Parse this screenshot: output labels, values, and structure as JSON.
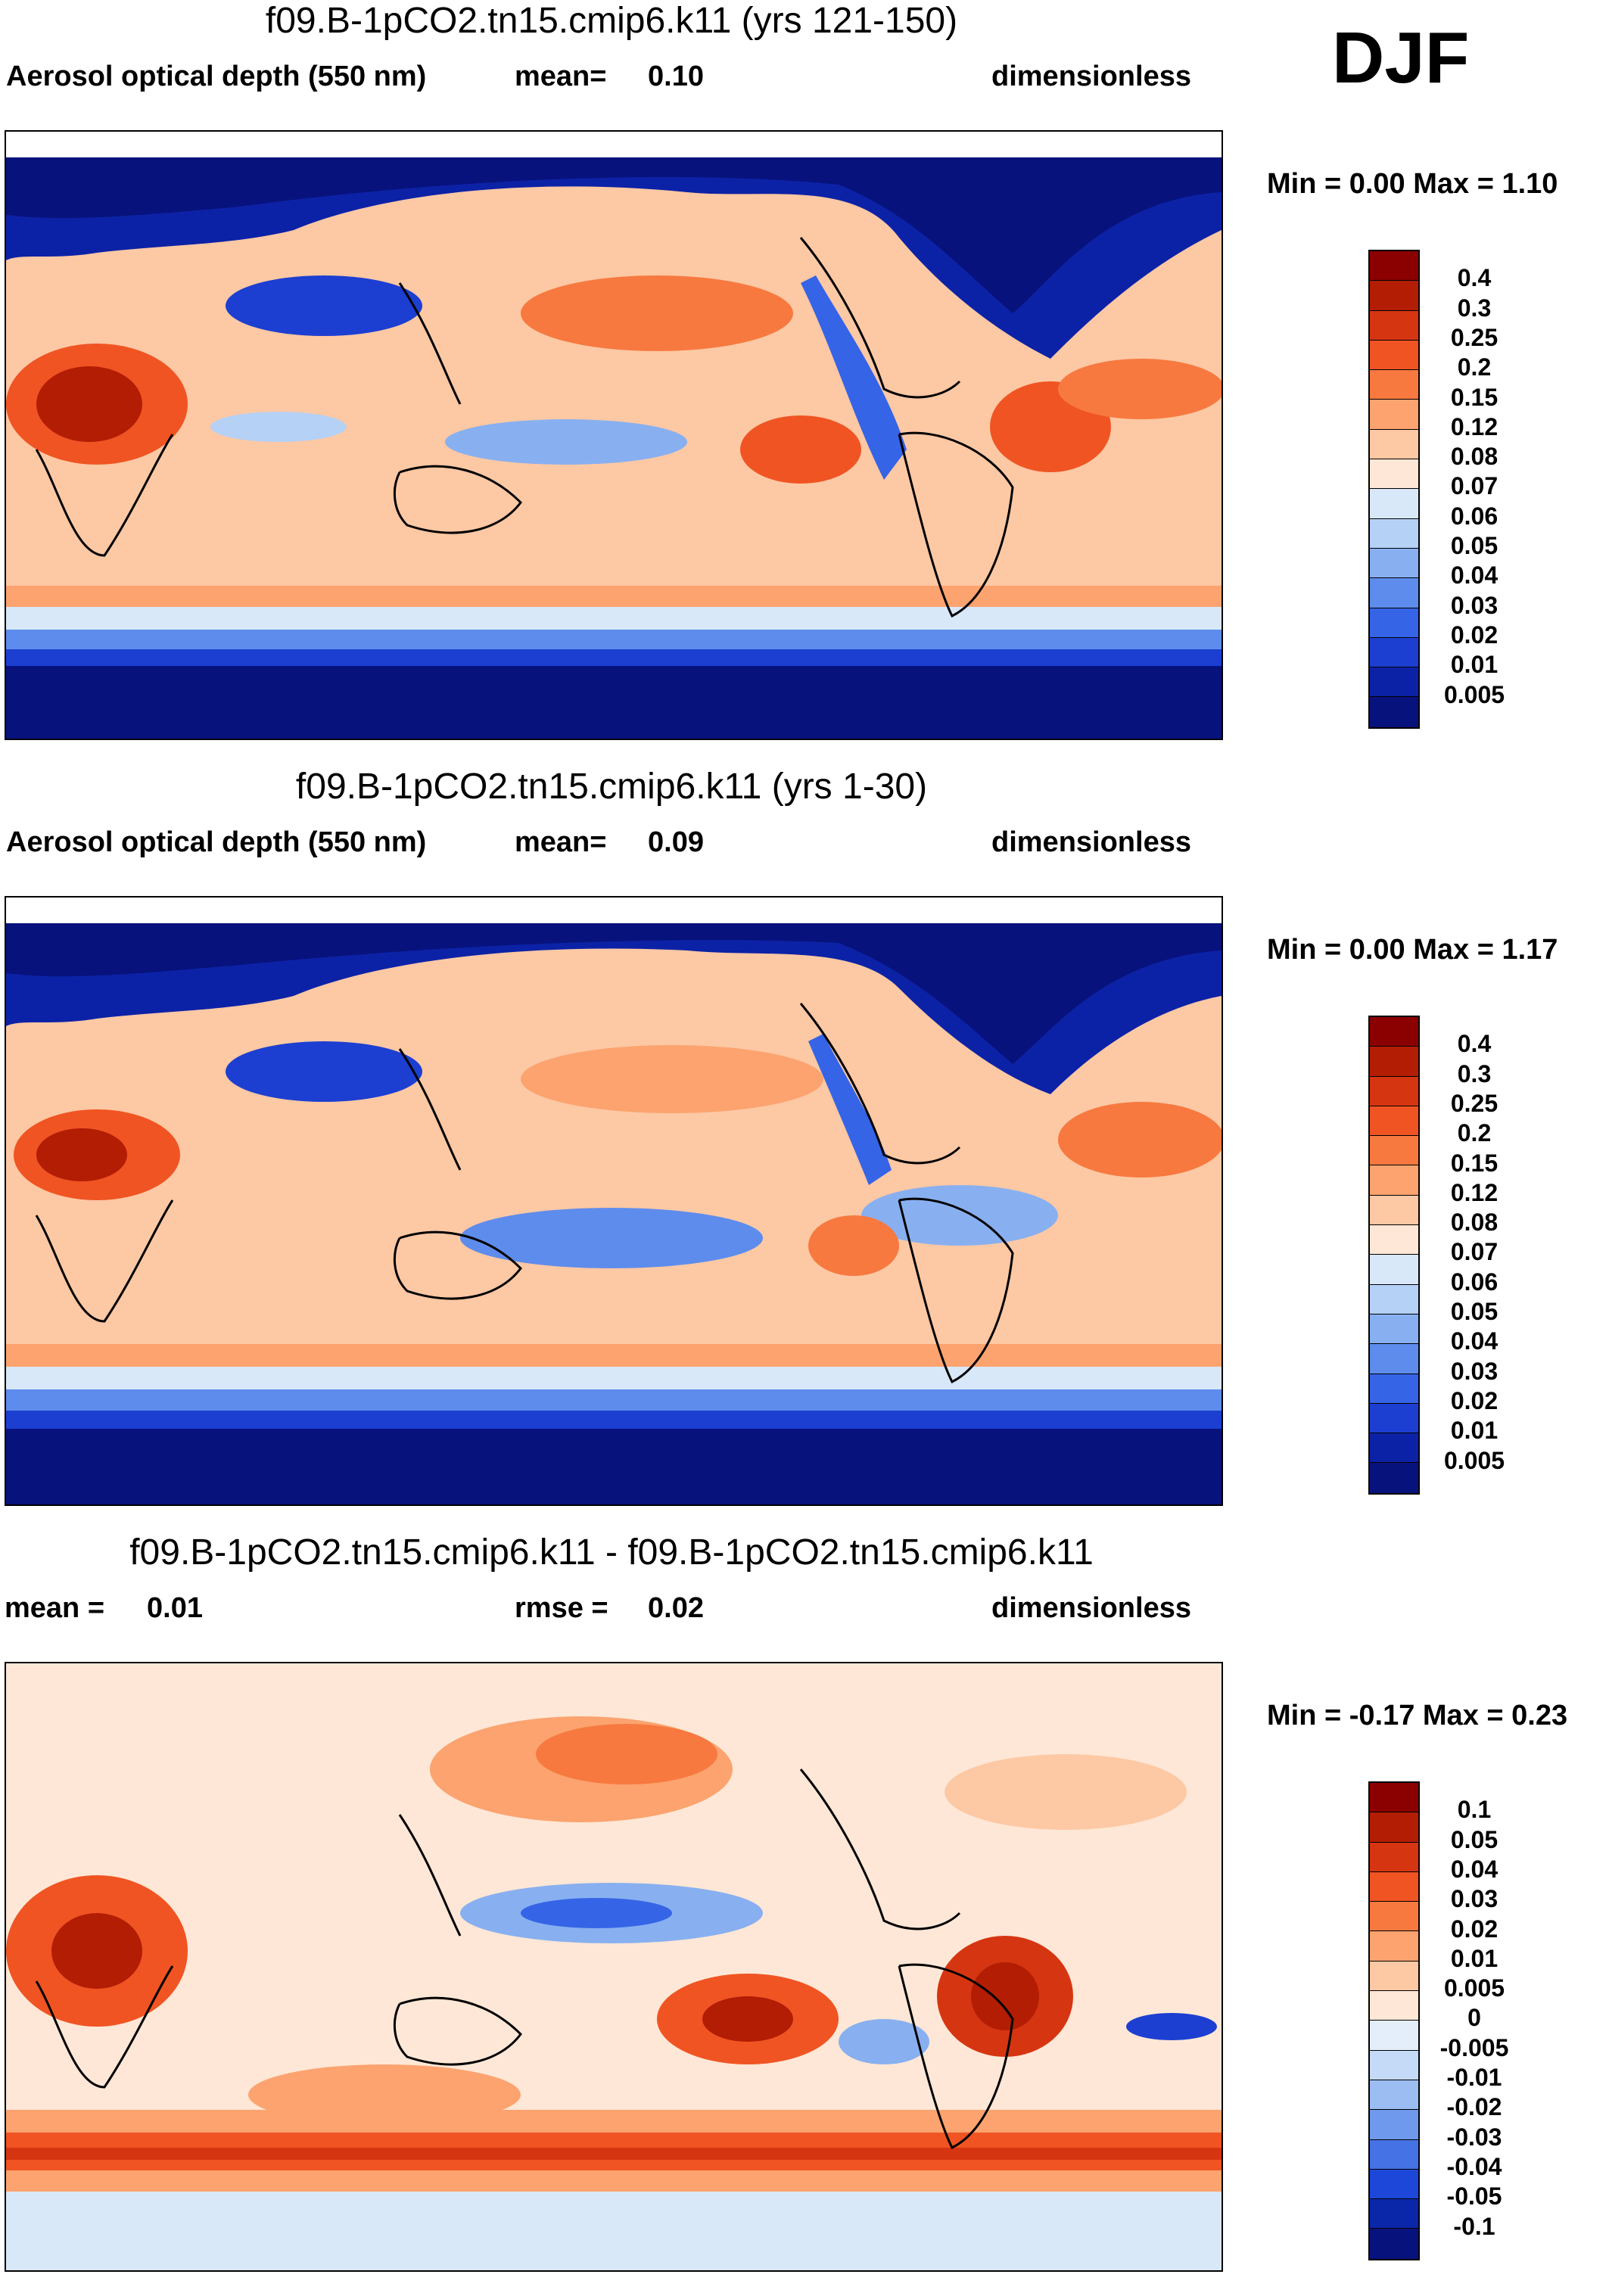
{
  "season": "DJF",
  "panels": [
    {
      "title": "f09.B-1pCO2.tn15.cmip6.k11 (yrs 121-150)",
      "left_label": "Aerosol optical depth (550 nm)",
      "stat1_label": "mean=",
      "stat1_value": "0.10",
      "units": "dimensionless",
      "minmax": "Min =   0.00 Max =   1.10",
      "colorbar": {
        "labels": [
          "0.4",
          "0.3",
          "0.25",
          "0.2",
          "0.15",
          "0.12",
          "0.08",
          "0.07",
          "0.06",
          "0.05",
          "0.04",
          "0.03",
          "0.02",
          "0.01",
          "0.005"
        ],
        "colors": [
          "#8b0000",
          "#b21d04",
          "#d63512",
          "#f05423",
          "#f7793f",
          "#fca36f",
          "#fdc8a4",
          "#fee7d6",
          "#d9e8f8",
          "#b5d1f6",
          "#88b0f0",
          "#5e8cec",
          "#3564e6",
          "#1c3fd1",
          "#0c22a6",
          "#08127d"
        ]
      }
    },
    {
      "title": "f09.B-1pCO2.tn15.cmip6.k11 (yrs 1-30)",
      "left_label": "Aerosol optical depth (550 nm)",
      "stat1_label": "mean=",
      "stat1_value": "0.09",
      "units": "dimensionless",
      "minmax": "Min =   0.00 Max =   1.17",
      "colorbar": {
        "labels": [
          "0.4",
          "0.3",
          "0.25",
          "0.2",
          "0.15",
          "0.12",
          "0.08",
          "0.07",
          "0.06",
          "0.05",
          "0.04",
          "0.03",
          "0.02",
          "0.01",
          "0.005"
        ],
        "colors": [
          "#8b0000",
          "#b21d04",
          "#d63512",
          "#f05423",
          "#f7793f",
          "#fca36f",
          "#fdc8a4",
          "#fee7d6",
          "#d9e8f8",
          "#b5d1f6",
          "#88b0f0",
          "#5e8cec",
          "#3564e6",
          "#1c3fd1",
          "#0c22a6",
          "#08127d"
        ]
      }
    },
    {
      "title": "f09.B-1pCO2.tn15.cmip6.k11 - f09.B-1pCO2.tn15.cmip6.k11",
      "left_label": "",
      "stat1_label": "mean =",
      "stat1_value": "0.01",
      "stat2_label": "rmse =",
      "stat2_value": "0.02",
      "units": "dimensionless",
      "minmax": "Min =  -0.17 Max =   0.23",
      "colorbar": {
        "labels": [
          "0.1",
          "0.05",
          "0.04",
          "0.03",
          "0.02",
          "0.01",
          "0.005",
          "0",
          "-0.005",
          "-0.01",
          "-0.02",
          "-0.03",
          "-0.04",
          "-0.05",
          "-0.1"
        ],
        "colors": [
          "#8b0000",
          "#b21d04",
          "#d63512",
          "#f05423",
          "#f7793f",
          "#fca36f",
          "#fdc8a4",
          "#fee7d6",
          "#e4eefb",
          "#c4daf7",
          "#9cbdf2",
          "#6f99ec",
          "#4573e6",
          "#1c47d8",
          "#0a27aa",
          "#08127d"
        ]
      }
    }
  ]
}
